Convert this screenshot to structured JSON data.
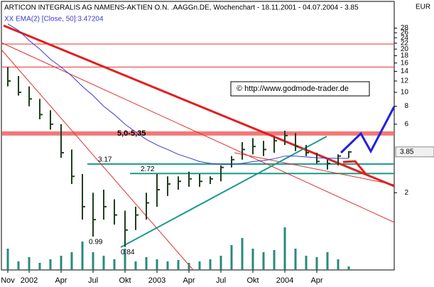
{
  "chart_data": {
    "type": "ohlc",
    "title": "ARTICON INTEGRALIS AG NAMENS-AKTIEN O.N. .AAGGn.DE, Wochenchart - 18.11.2001 - 04.07.2004 - 3.85",
    "currency": "EUR",
    "watermark": "© http://www.godmode-trader.de",
    "categories": [
      "Nov",
      null,
      "2002",
      null,
      null,
      "Apr",
      null,
      null,
      "Jul",
      null,
      null,
      "Okt",
      null,
      null,
      "2003",
      null,
      null,
      "Apr",
      null,
      null,
      "Jul",
      null,
      null,
      "Okt",
      null,
      null,
      "2004",
      null,
      null,
      "Apr",
      null,
      null,
      null
    ],
    "ohlc": {
      "color": "#1f3f1f",
      "high": [
        15,
        13,
        11,
        9,
        7.5,
        6,
        4,
        2.7,
        2,
        2.1,
        1.8,
        1.5,
        1.6,
        2.0,
        2.7,
        2.6,
        2.6,
        2.8,
        2.7,
        2.6,
        3.1,
        3.6,
        4.5,
        4.8,
        4.6,
        4.9,
        5.4,
        5.2,
        4.3,
        3.8,
        3.4,
        3.7,
        3.9
      ],
      "low": [
        11,
        9.5,
        8,
        6.5,
        5.5,
        3.5,
        2.3,
        1.3,
        0.99,
        1.3,
        1.2,
        0.84,
        1.1,
        1.3,
        1.6,
        1.9,
        2.1,
        2.2,
        2.2,
        2.3,
        2.4,
        3.0,
        3.4,
        3.7,
        3.6,
        3.8,
        4.3,
        3.9,
        3.6,
        3.2,
        2.9,
        3.1,
        3.5
      ],
      "close": [
        12,
        10,
        9,
        7,
        6,
        3.8,
        2.6,
        1.6,
        1.3,
        1.6,
        1.4,
        1.1,
        1.4,
        1.7,
        2.1,
        2.3,
        2.4,
        2.5,
        2.4,
        2.5,
        3.0,
        3.4,
        4.0,
        4.2,
        4.0,
        4.6,
        5.0,
        4.2,
        3.8,
        3.3,
        3.2,
        3.6,
        3.85
      ]
    },
    "series": [
      {
        "name": "XX EMA(2) [Close, 50]:3.47204",
        "color": "#3a3ad0",
        "values": [
          30,
          27,
          23,
          20,
          17,
          15,
          13,
          11,
          9.5,
          8,
          7,
          6,
          5.3,
          4.7,
          4.3,
          4.0,
          3.7,
          3.5,
          3.3,
          3.2,
          3.15,
          3.15,
          3.2,
          3.3,
          3.35,
          3.45,
          3.6,
          3.6,
          3.55,
          3.5,
          3.48,
          3.47,
          3.47
        ]
      }
    ],
    "volume": {
      "color": "#2a8a7a",
      "values": [
        30,
        12,
        18,
        10,
        15,
        20,
        25,
        40,
        25,
        20,
        15,
        30,
        12,
        18,
        15,
        12,
        14,
        10,
        12,
        15,
        20,
        35,
        45,
        30,
        25,
        28,
        60,
        30,
        20,
        18,
        25,
        15,
        5
      ]
    },
    "zone": {
      "low": 5.0,
      "high": 5.35,
      "label": "5,0-5,35",
      "color": "#f06060"
    },
    "hlines": [
      21.7,
      15
    ],
    "levels": [
      3.17,
      2.72
    ],
    "last_price": 3.85,
    "log_scale": true,
    "ylim": [
      0.58,
      35
    ],
    "yticks": [
      28,
      26,
      24,
      22,
      20,
      18,
      16,
      14,
      12,
      10,
      8,
      6,
      2
    ]
  }
}
